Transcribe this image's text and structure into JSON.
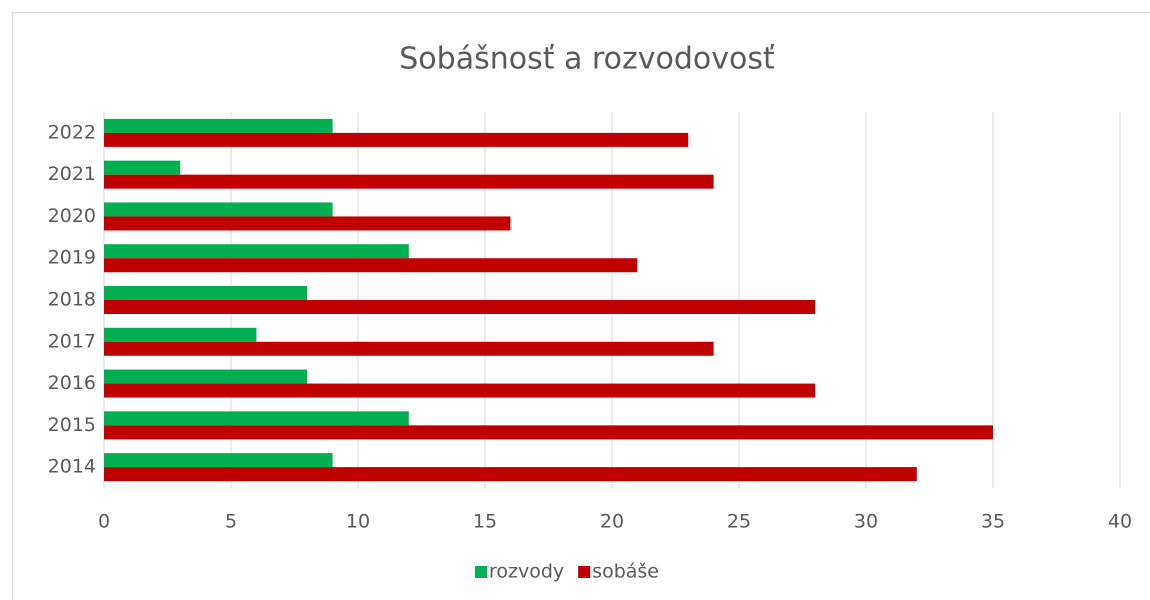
{
  "chart_data": {
    "type": "hbar",
    "title": "Sobášnosť a rozvodovosť",
    "categories": [
      "2014",
      "2015",
      "2016",
      "2017",
      "2018",
      "2019",
      "2020",
      "2021",
      "2022"
    ],
    "series": [
      {
        "name": "rozvody",
        "color": "#00b050",
        "values": [
          9,
          12,
          8,
          6,
          8,
          12,
          9,
          3,
          9
        ]
      },
      {
        "name": "sobáše",
        "color": "#c00000",
        "values": [
          32,
          35,
          28,
          24,
          28,
          21,
          16,
          24,
          23
        ]
      }
    ],
    "xlim": [
      0,
      40
    ],
    "xticks": [
      0,
      5,
      10,
      15,
      20,
      25,
      30,
      35,
      40
    ],
    "grid": true,
    "legend": "bottom"
  }
}
